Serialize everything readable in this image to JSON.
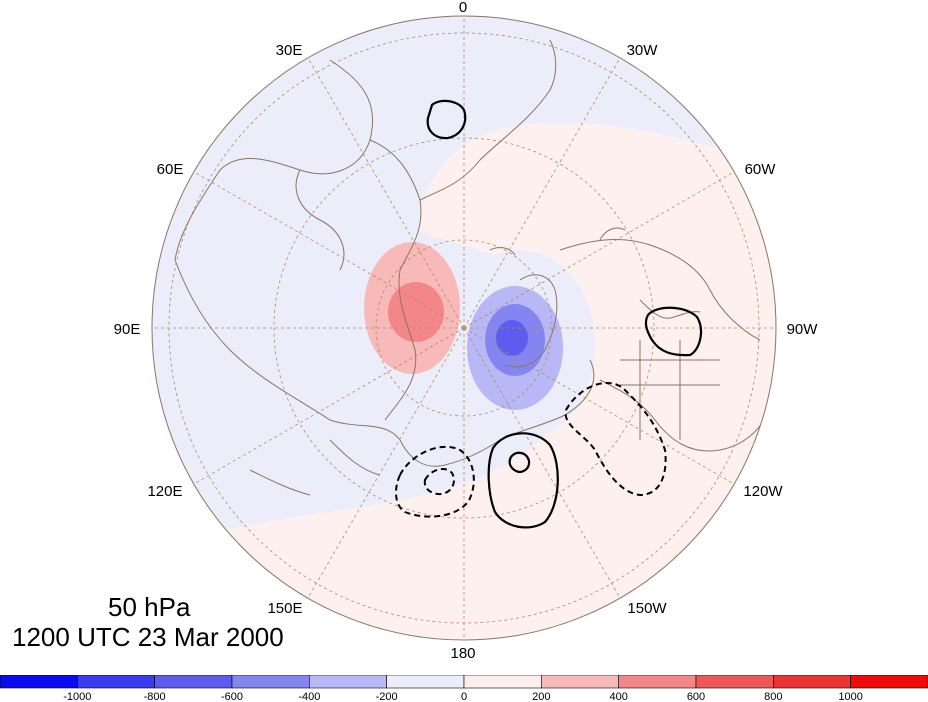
{
  "map": {
    "projection": "north-polar-stereographic",
    "level": "50 hPa",
    "time": "1200 UTC 23 Mar 2000",
    "longitude_labels": [
      "0",
      "30W",
      "60W",
      "90W",
      "120W",
      "150W",
      "180",
      "150E",
      "120E",
      "90E",
      "60E",
      "30E"
    ],
    "colors": {
      "background_negative": "#ecedfb",
      "background_positive": "#fdf0ef",
      "coastline": "#8a7560",
      "grid": "#b08c60"
    }
  },
  "colorbar": {
    "tick_labels": [
      "-1000",
      "-800",
      "-600",
      "-400",
      "-200",
      "0",
      "200",
      "400",
      "600",
      "800",
      "1000"
    ],
    "colors": [
      "#0b0bf0",
      "#3a3aee",
      "#5c5cee",
      "#8585f2",
      "#b8b8f6",
      "#ececfb",
      "#fdeeee",
      "#f8b9b9",
      "#f38686",
      "#ef5858",
      "#ec3434",
      "#f00b0b"
    ]
  }
}
